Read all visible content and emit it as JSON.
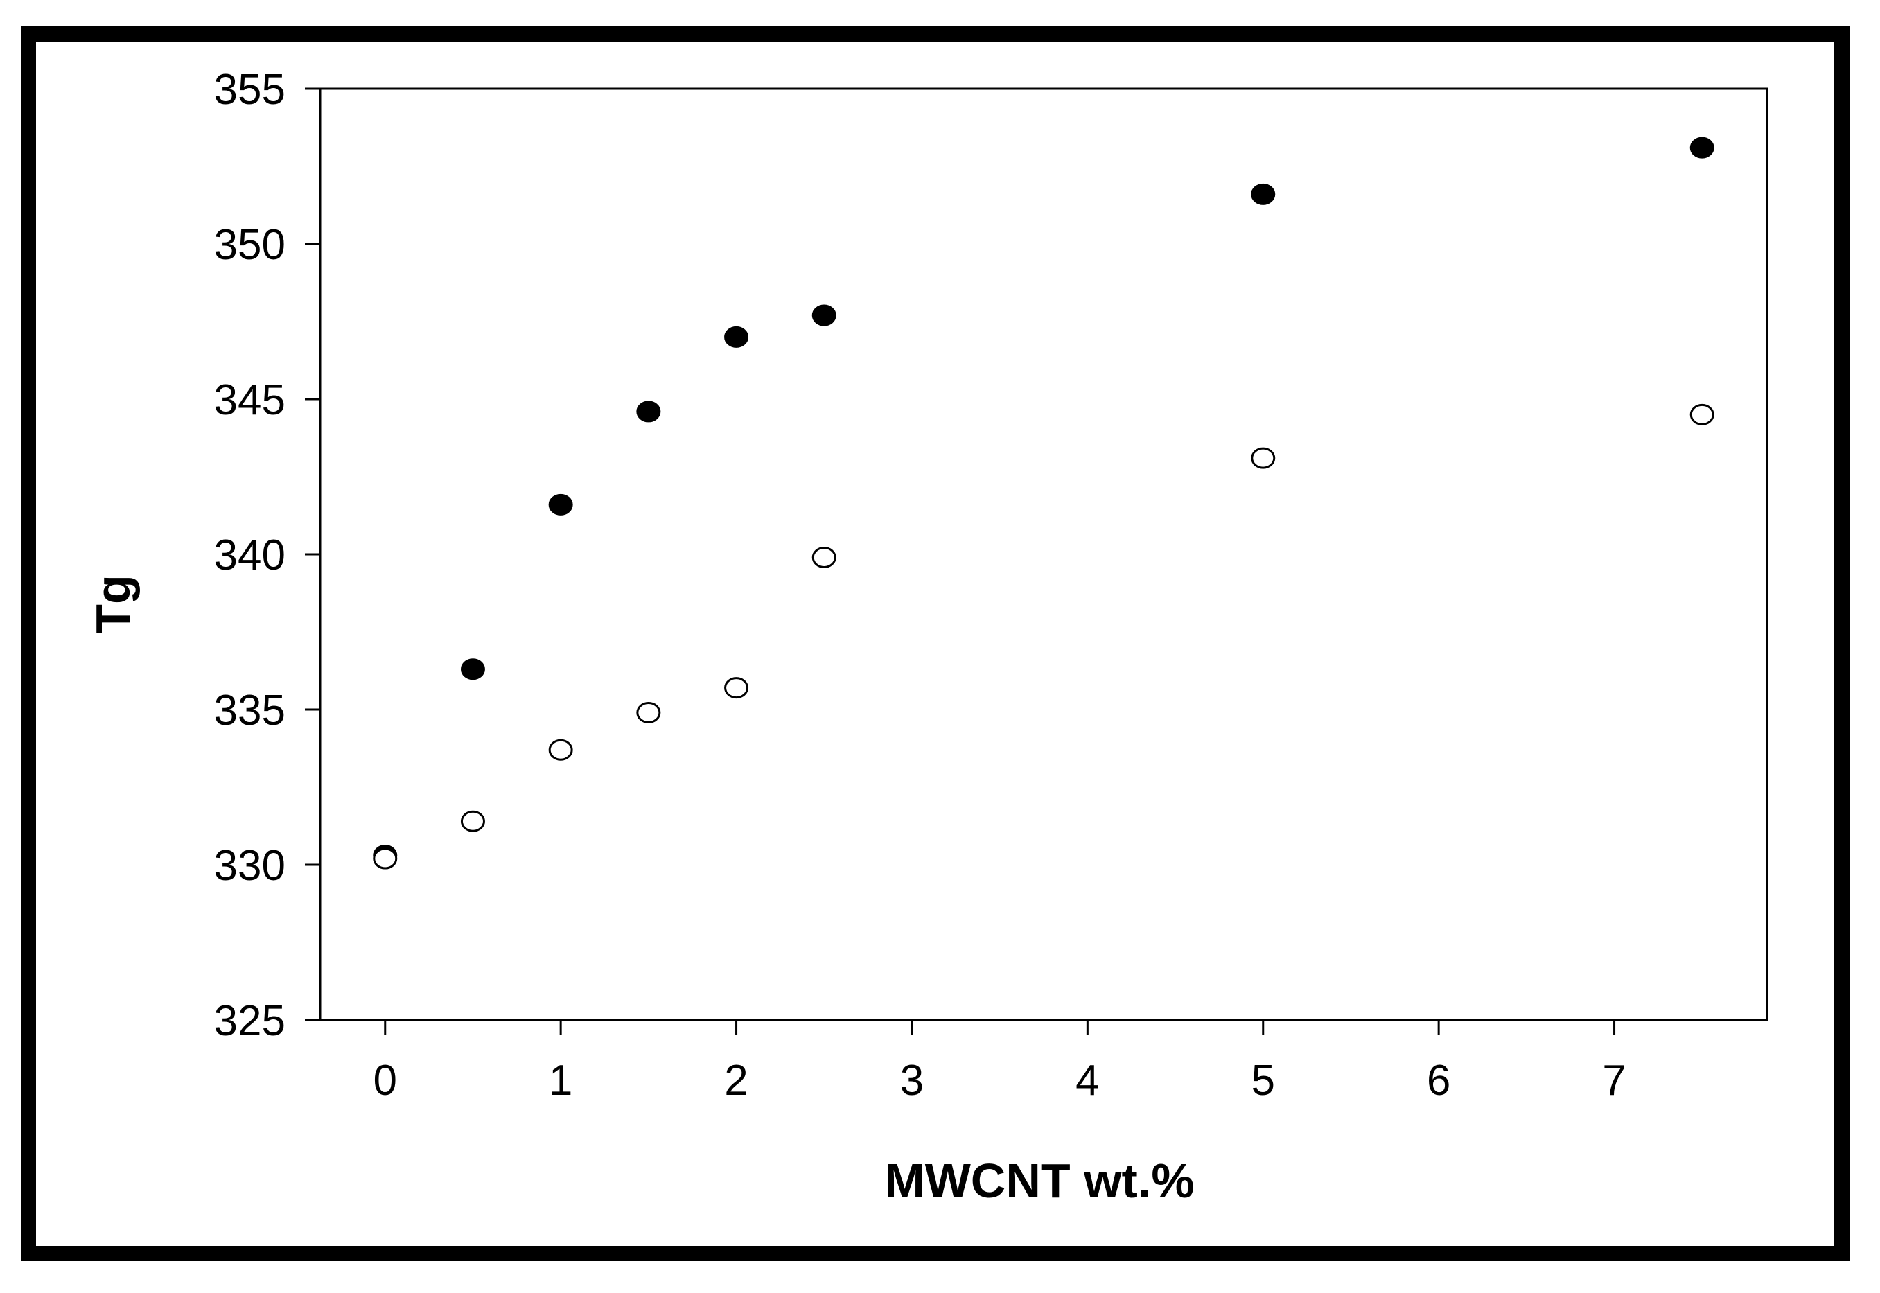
{
  "chart_data": {
    "type": "scatter",
    "title": "",
    "xlabel": "MWCNT wt.%",
    "ylabel": "Tg",
    "xlim": [
      -0.37,
      7.87
    ],
    "ylim": [
      325,
      355
    ],
    "xticks": [
      0,
      1,
      2,
      3,
      4,
      5,
      6,
      7
    ],
    "yticks": [
      325,
      330,
      335,
      340,
      345,
      350,
      355
    ],
    "grid": false,
    "legend": "none",
    "series": [
      {
        "marker": "filled-circle",
        "color": "#000000",
        "points": [
          {
            "x": 0,
            "y": 330.3
          },
          {
            "x": 0.5,
            "y": 336.3
          },
          {
            "x": 1,
            "y": 341.6
          },
          {
            "x": 1.5,
            "y": 344.6
          },
          {
            "x": 2,
            "y": 347.0
          },
          {
            "x": 2.5,
            "y": 347.7
          },
          {
            "x": 5,
            "y": 351.6
          },
          {
            "x": 7.5,
            "y": 353.1
          }
        ]
      },
      {
        "marker": "open-circle",
        "color": "#000000",
        "points": [
          {
            "x": 0,
            "y": 330.2
          },
          {
            "x": 0.5,
            "y": 331.4
          },
          {
            "x": 1,
            "y": 333.7
          },
          {
            "x": 1.5,
            "y": 334.9
          },
          {
            "x": 2,
            "y": 335.7
          },
          {
            "x": 2.5,
            "y": 339.9
          },
          {
            "x": 5,
            "y": 343.1
          },
          {
            "x": 7.5,
            "y": 344.5
          }
        ]
      }
    ]
  }
}
